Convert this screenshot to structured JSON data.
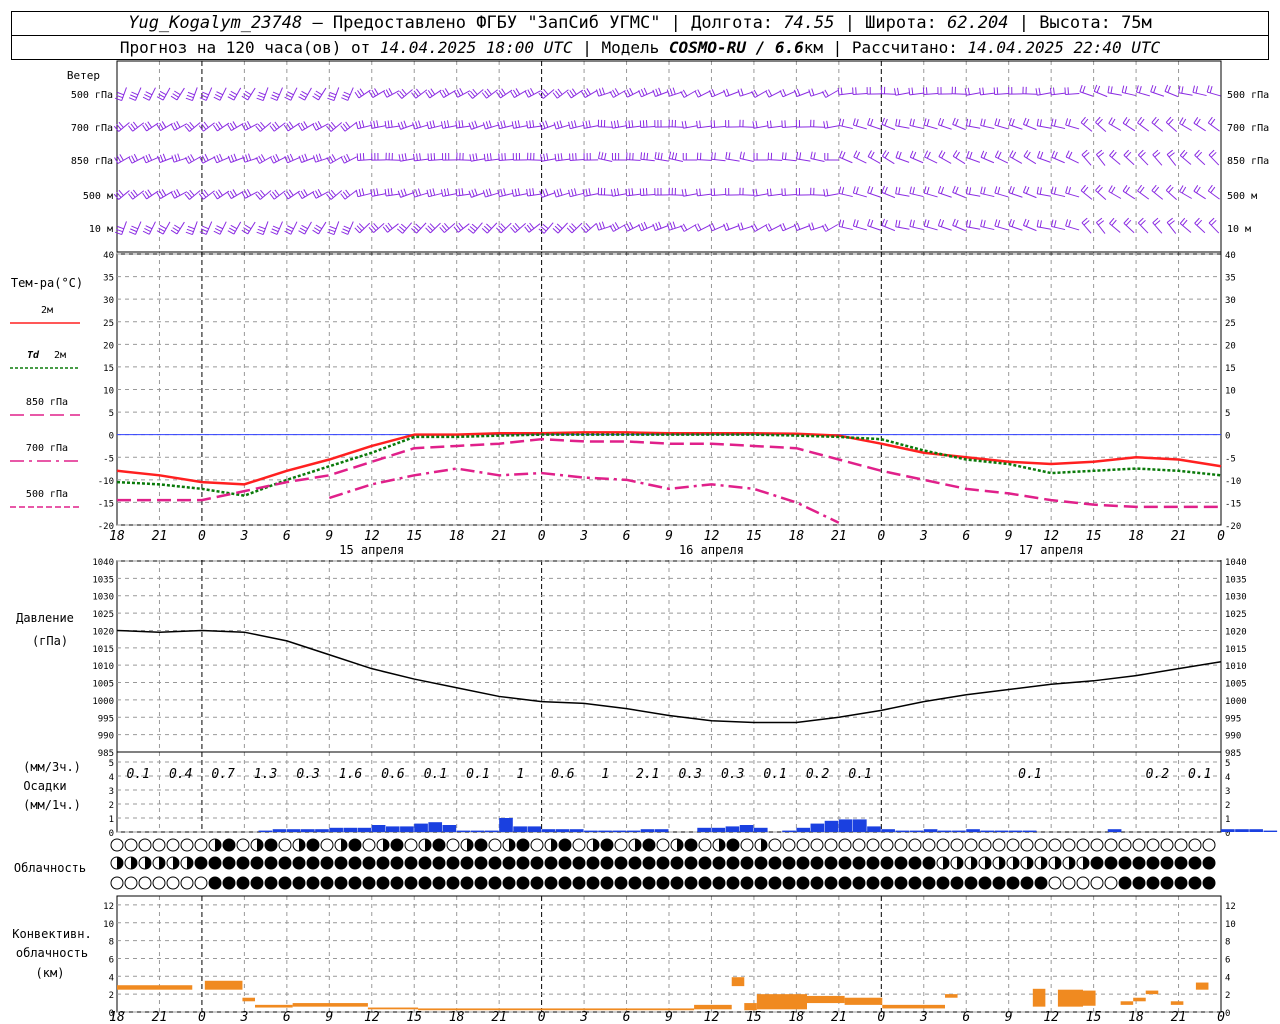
{
  "header": {
    "station": "Yug_Kogalym_23748",
    "provided_by": " — Предоставлено ФГБУ \"ЗапСиб УГМС\" | ",
    "lon_label": "Долгота: ",
    "lon": "74.55",
    "lat_label": " | Широта: ",
    "lat": "62.204",
    "alt_label": " | Высота: 75м",
    "forecast_prefix": "Прогноз на 120 часа(ов) от ",
    "forecast_from": "14.04.2025 18:00 UTC",
    "model_prefix": "  | Модель ",
    "model": "COSMO-RU / 6.6",
    "model_unit": "км | Рассчитано: ",
    "computed": "14.04.2025 22:40 UTC"
  },
  "time_axis": {
    "hour_ticks": [
      "18",
      "21",
      "0",
      "3",
      "6",
      "9",
      "12",
      "15",
      "18",
      "21",
      "0",
      "3",
      "6",
      "9",
      "12",
      "15",
      "18",
      "21",
      "0",
      "3",
      "6",
      "9",
      "12",
      "15",
      "18",
      "21",
      "0"
    ],
    "date_labels": [
      "15 апреля",
      "16 апреля",
      "17 апреля"
    ]
  },
  "wind_panel": {
    "title": "Ветер",
    "levels": [
      "500 гПа",
      "700 гПа",
      "850 гПа",
      "500 м",
      "10  м"
    ]
  },
  "colors": {
    "t2m": "#ff2020",
    "td2m": "#0a7a0a",
    "t850": "#e0208a",
    "t700": "#e0208a",
    "t500": "#e0208a",
    "wind": "#8a2be2",
    "zero_line": "#3040ff",
    "precip": "#1a40e0",
    "precip_snow": "#2aa82a",
    "convective": "#f08a20",
    "grid": "#999999"
  },
  "chart_data": [
    {
      "type": "line",
      "title": "Тем-ра(°C)",
      "ylim": [
        -20,
        40
      ],
      "y_ticks": [
        "40",
        "35",
        "30",
        "25",
        "20",
        "15",
        "10",
        "5",
        "0",
        "-5",
        "-10",
        "-15",
        "-20"
      ],
      "x_hours": [
        0,
        3,
        6,
        9,
        12,
        15,
        18,
        21,
        24,
        27,
        30,
        33,
        36,
        39,
        42,
        45,
        48,
        51,
        54,
        57,
        60,
        63,
        66,
        69,
        72,
        75,
        78
      ],
      "series": [
        {
          "name": "2м",
          "values": [
            -8,
            -9,
            -10.5,
            -11,
            -8,
            -5.5,
            -2.5,
            0,
            0,
            0.3,
            0.3,
            0.5,
            0.5,
            0.3,
            0.3,
            0.3,
            0.2,
            -0.2,
            -2,
            -4,
            -5,
            -6,
            -6.5,
            -6,
            -5,
            -5.5,
            -7
          ]
        },
        {
          "name": "Td 2м",
          "values": [
            -10.5,
            -11,
            -12,
            -13.5,
            -10,
            -7,
            -4,
            -0.5,
            -0.5,
            -0.2,
            0,
            0,
            0,
            0,
            0,
            0,
            -0.2,
            -0.5,
            -1,
            -3.5,
            -5.5,
            -6.5,
            -8.5,
            -8,
            -7.5,
            -8,
            -9
          ]
        },
        {
          "name": "850 гПа",
          "values": [
            -14.5,
            -14.5,
            -14.5,
            -12.5,
            -10.5,
            -9,
            -6,
            -3,
            -2.5,
            -2,
            -1,
            -1.5,
            -1.5,
            -2,
            -2,
            -2.5,
            -3,
            -5.5,
            -8,
            -10,
            -12,
            -13,
            -14.5,
            -15.5,
            -16,
            -16,
            -16
          ]
        },
        {
          "name": "700 гПа",
          "values": [
            null,
            null,
            null,
            null,
            null,
            -14,
            -11,
            -9,
            -7.5,
            -9,
            -8.5,
            -9.5,
            -10,
            -12,
            -11,
            -12,
            -15,
            -19.5,
            null,
            null,
            null,
            null,
            null,
            null,
            null,
            null,
            null
          ]
        },
        {
          "name": "500 гПа",
          "values": [
            null,
            null,
            null,
            null,
            null,
            null,
            null,
            null,
            null,
            null,
            null,
            null,
            null,
            null,
            null,
            null,
            null,
            null,
            null,
            null,
            null,
            null,
            null,
            null,
            null,
            null,
            null
          ]
        }
      ]
    },
    {
      "type": "line",
      "title": "Давление",
      "ylabel": "(гПа)",
      "ylim": [
        985,
        1040
      ],
      "y_ticks": [
        "1040",
        "1035",
        "1030",
        "1025",
        "1020",
        "1015",
        "1010",
        "1005",
        "1000",
        "995",
        "990",
        "985"
      ],
      "x_hours": [
        0,
        3,
        6,
        9,
        12,
        15,
        18,
        21,
        24,
        27,
        30,
        33,
        36,
        39,
        42,
        45,
        48,
        51,
        54,
        57,
        60,
        63,
        66,
        69,
        72,
        75,
        78
      ],
      "series": [
        {
          "name": "P",
          "values": [
            1020,
            1019.5,
            1020,
            1019.5,
            1017,
            1013,
            1009,
            1006,
            1003.5,
            1001,
            999.5,
            999,
            997.5,
            995.5,
            994,
            993.5,
            993.5,
            995,
            997,
            999.5,
            1001.5,
            1003,
            1004.5,
            1005.5,
            1007,
            1009,
            1011
          ]
        }
      ]
    },
    {
      "type": "bar",
      "title": "Осадки",
      "ylabel_top": "(мм/3ч.)",
      "ylabel_bottom": "(мм/1ч.)",
      "ylim": [
        0,
        5
      ],
      "y_ticks": [
        "5",
        "4",
        "3",
        "2",
        "1",
        "0"
      ],
      "sums_3h": [
        "0.1",
        "0.4",
        "0.7",
        "1.3",
        "0.3",
        "1.6",
        "0.6",
        "0.1",
        "0.1",
        "1",
        "0.6",
        "1",
        "2.1",
        "0.3",
        "0.3",
        "0.1",
        "0.2",
        "0.1",
        "0.1",
        "0.2",
        "0.1"
      ],
      "sum_hours": [
        3,
        6,
        9,
        12,
        15,
        18,
        21,
        24,
        27,
        30,
        33,
        36,
        39,
        42,
        45,
        48,
        51,
        54,
        66,
        75,
        78
      ],
      "hourly": [
        0,
        0,
        0,
        0,
        0,
        0,
        0,
        0,
        0,
        0,
        0.1,
        0.2,
        0.2,
        0.2,
        0.2,
        0.3,
        0.3,
        0.3,
        0.5,
        0.4,
        0.4,
        0.6,
        0.7,
        0.5,
        0.1,
        0.1,
        0.1,
        1.0,
        0.4,
        0.4,
        0.2,
        0.2,
        0.2,
        0.1,
        0.1,
        0.1,
        0.1,
        0.2,
        0.2,
        0,
        0,
        0.3,
        0.3,
        0.4,
        0.5,
        0.3,
        0,
        0.1,
        0.3,
        0.6,
        0.8,
        0.9,
        0.9,
        0.4,
        0.2,
        0.1,
        0.1,
        0.2,
        0.1,
        0.1,
        0.2,
        0.1,
        0.1,
        0.1,
        0.1,
        0,
        0,
        0,
        0,
        0,
        0.2,
        0,
        0,
        0,
        0,
        0,
        0,
        0,
        0.2,
        0.2,
        0.2,
        0.1
      ]
    },
    {
      "type": "bar",
      "title": "Конвективн. облачность",
      "ylabel": "(км)",
      "ylim": [
        0,
        13
      ],
      "y_ticks": [
        "12",
        "10",
        "8",
        "6",
        "4",
        "2",
        "0"
      ]
    }
  ],
  "cloud_panel": {
    "title": "Облачность"
  },
  "legend": [
    {
      "label": "2м"
    },
    {
      "label": "Td",
      "label_b": "2м"
    },
    {
      "label": "850 гПа"
    },
    {
      "label": "700 гПа"
    },
    {
      "label": "500 гПа"
    }
  ]
}
